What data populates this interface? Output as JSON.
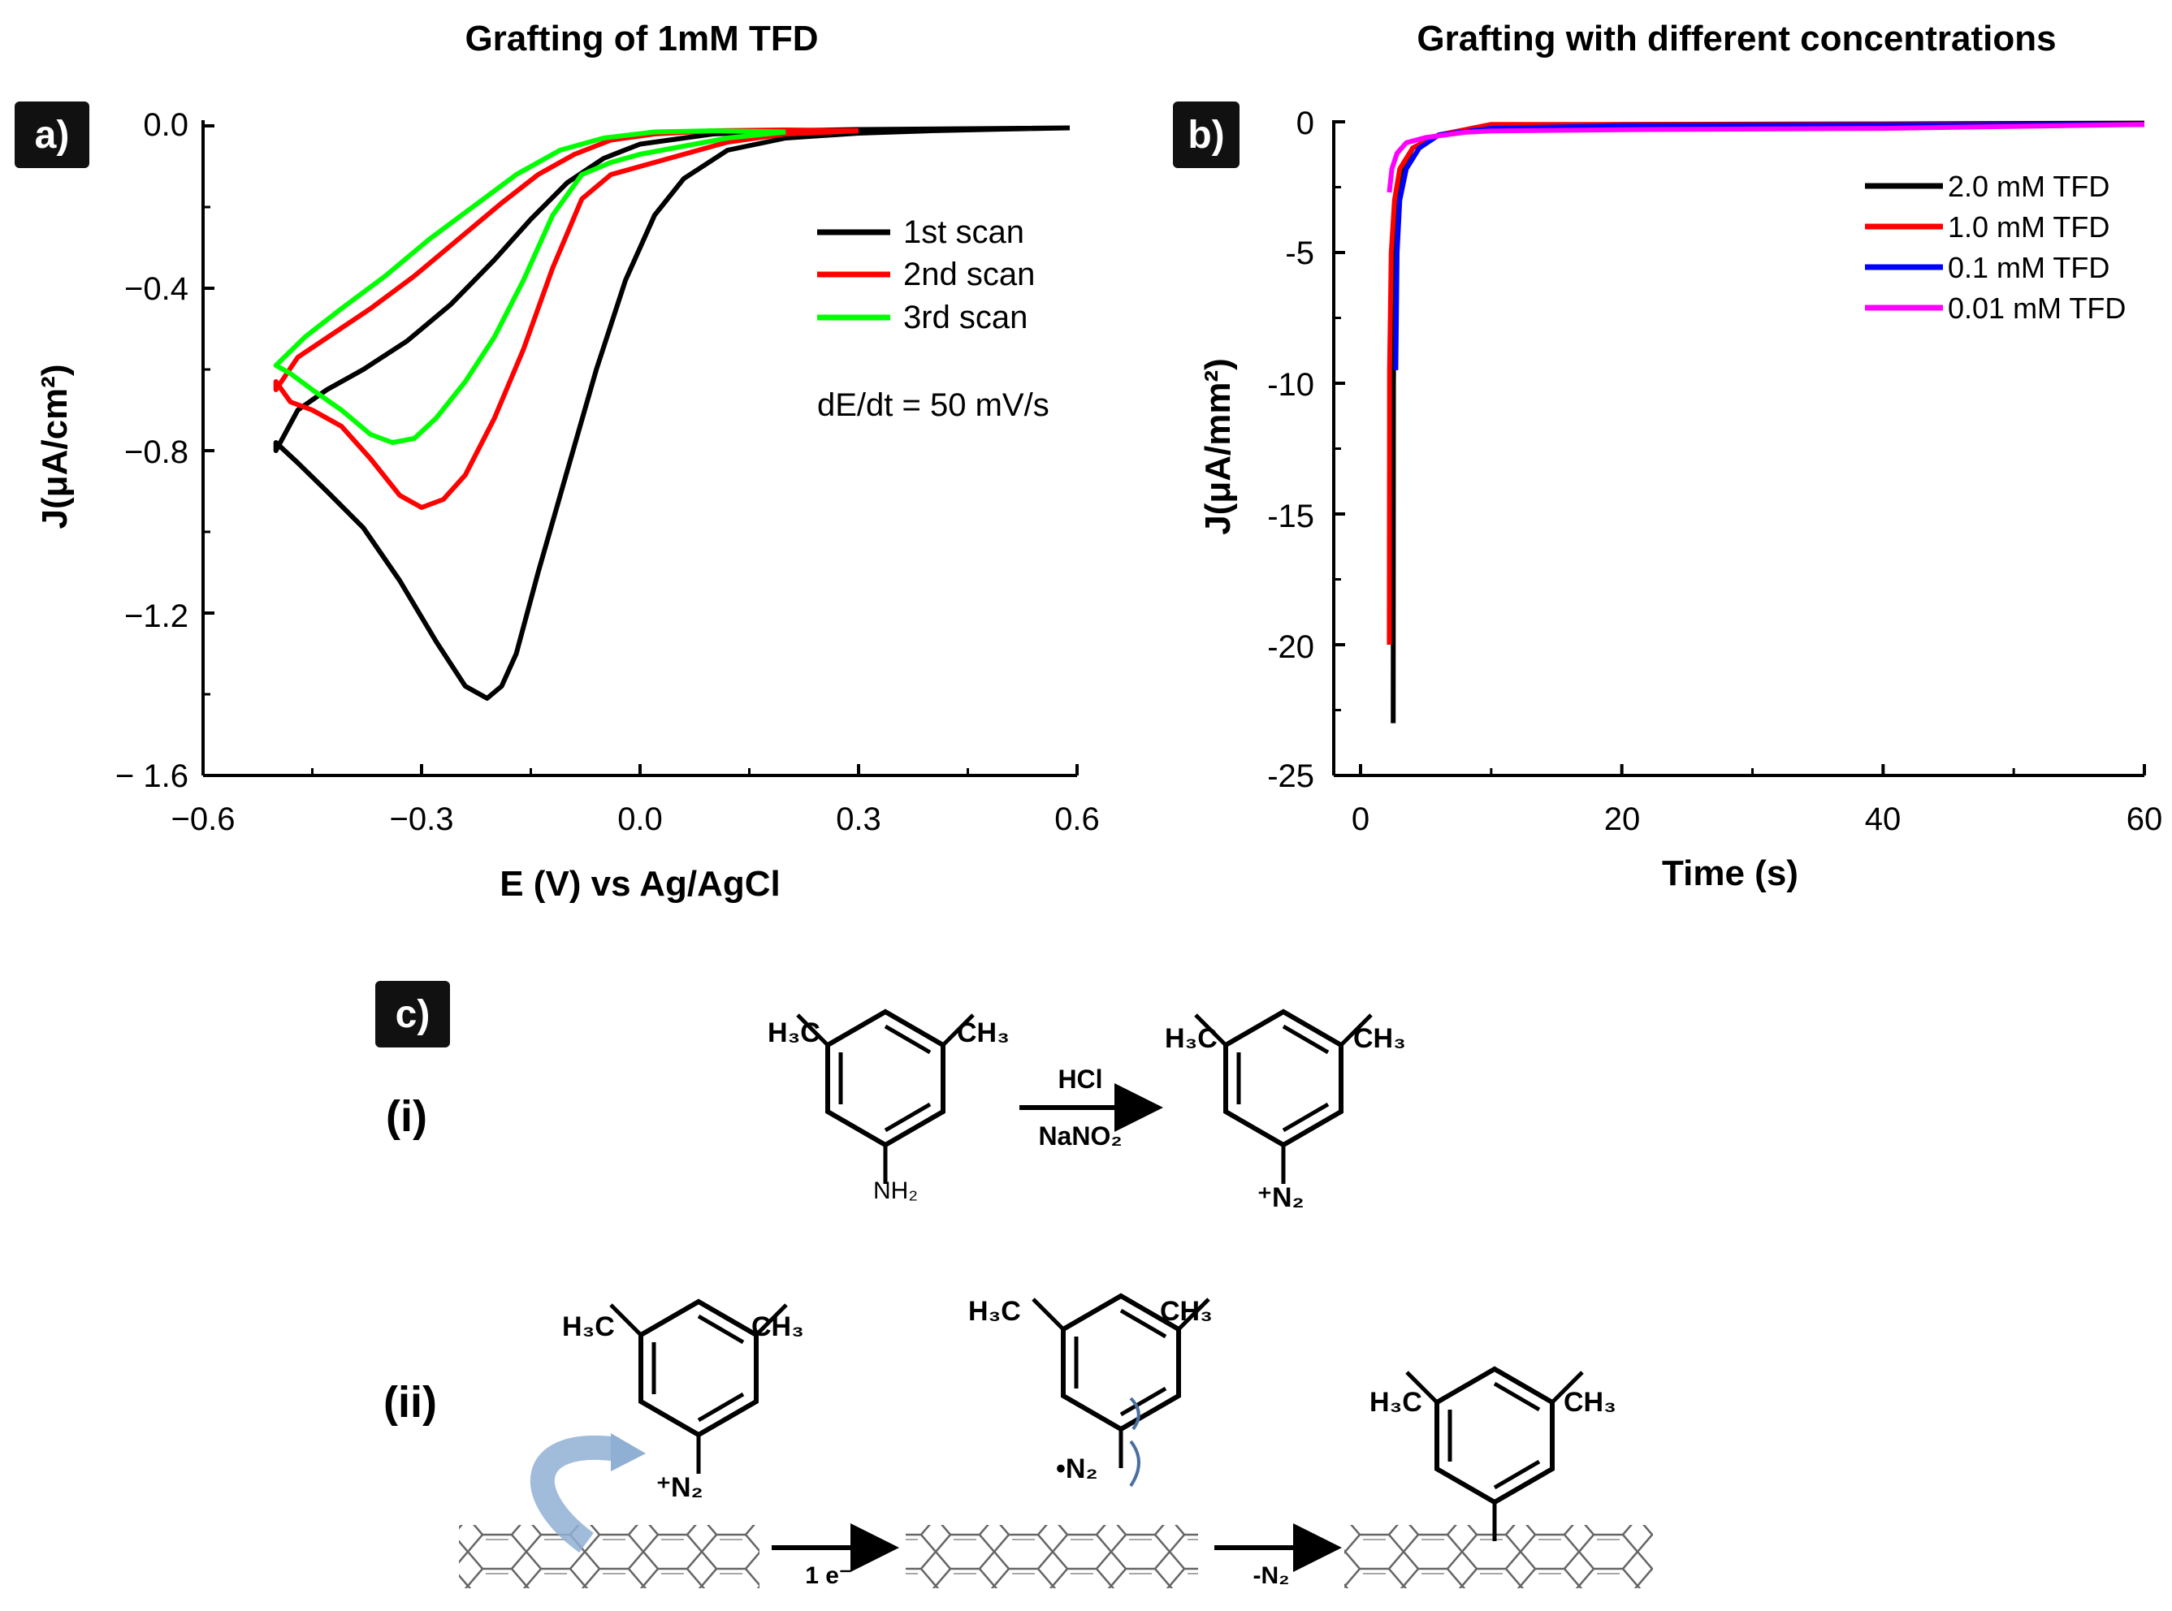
{
  "panel_a": {
    "badge": "a)",
    "title": "Grafting of 1mM TFD",
    "legend": [
      "1st scan",
      "2nd scan",
      "3rd scan"
    ],
    "annotation": "dE/dt = 50 mV/s",
    "xticks": [
      "−0.6",
      "−0.3",
      "0.0",
      "0.3",
      "0.6"
    ],
    "yticks": [
      "0.0",
      "−0.4",
      "−0.8",
      "−1.2",
      "− 1.6"
    ],
    "xlabel": "E (V) vs Ag/AgCl",
    "ylabel": "J(μA/cm²)"
  },
  "panel_b": {
    "badge": "b)",
    "title": "Grafting with different concentrations",
    "legend": [
      "2.0 mM TFD",
      "1.0 mM TFD",
      "0.1 mM TFD",
      "0.01 mM TFD"
    ],
    "xticks": [
      "0",
      "20",
      "40",
      "60"
    ],
    "yticks": [
      "0",
      "-5",
      "-10",
      "-15",
      "-20",
      "-25"
    ],
    "xlabel": "Time (s)",
    "ylabel": "J(μA/mm²)"
  },
  "panel_c": {
    "badge": "c)",
    "step_i": "(i)",
    "step_ii": "(ii)",
    "reagent_top": "HCl",
    "reagent_bottom": "NaNO₂",
    "h3c": "H₃C",
    "ch3": "CH₃",
    "nh2": "NH₂",
    "diazonium": "⁺N₂",
    "radical": "•N₂",
    "arrow_ii_1": "1 e⁻",
    "arrow_ii_2": "-N₂"
  },
  "chart_data": [
    {
      "type": "line",
      "title": "Grafting of 1mM TFD",
      "xlabel": "E (V) vs Ag/AgCl",
      "ylabel": "J(μA/cm²)",
      "xlim": [
        -0.6,
        0.6
      ],
      "ylim": [
        -1.6,
        0.0
      ],
      "legend_position": "top-right",
      "colors": [
        "#000000",
        "#ff0000",
        "#00ff00"
      ],
      "series": [
        {
          "name": "1st scan",
          "forward": [
            [
              0.59,
              -0.005
            ],
            [
              0.5,
              -0.008
            ],
            [
              0.4,
              -0.012
            ],
            [
              0.3,
              -0.018
            ],
            [
              0.2,
              -0.03
            ],
            [
              0.12,
              -0.06
            ],
            [
              0.06,
              -0.13
            ],
            [
              0.02,
              -0.22
            ],
            [
              -0.02,
              -0.38
            ],
            [
              -0.06,
              -0.6
            ],
            [
              -0.1,
              -0.85
            ],
            [
              -0.14,
              -1.1
            ],
            [
              -0.17,
              -1.3
            ],
            [
              -0.19,
              -1.38
            ],
            [
              -0.21,
              -1.41
            ],
            [
              -0.24,
              -1.38
            ],
            [
              -0.28,
              -1.27
            ],
            [
              -0.33,
              -1.12
            ],
            [
              -0.38,
              -0.99
            ],
            [
              -0.43,
              -0.9
            ],
            [
              -0.47,
              -0.83
            ],
            [
              -0.5,
              -0.78
            ]
          ],
          "reverse": [
            [
              -0.5,
              -0.8
            ],
            [
              -0.47,
              -0.7
            ],
            [
              -0.43,
              -0.65
            ],
            [
              -0.38,
              -0.6
            ],
            [
              -0.32,
              -0.53
            ],
            [
              -0.26,
              -0.44
            ],
            [
              -0.2,
              -0.33
            ],
            [
              -0.15,
              -0.23
            ],
            [
              -0.1,
              -0.14
            ],
            [
              -0.05,
              -0.08
            ],
            [
              0.0,
              -0.045
            ],
            [
              0.1,
              -0.02
            ],
            [
              0.2,
              -0.012
            ],
            [
              0.3,
              -0.009
            ],
            [
              0.45,
              -0.007
            ],
            [
              0.59,
              -0.005
            ]
          ]
        },
        {
          "name": "2nd scan",
          "forward": [
            [
              0.3,
              -0.012
            ],
            [
              0.2,
              -0.02
            ],
            [
              0.12,
              -0.04
            ],
            [
              0.06,
              -0.07
            ],
            [
              0.0,
              -0.1
            ],
            [
              -0.04,
              -0.12
            ],
            [
              -0.08,
              -0.18
            ],
            [
              -0.12,
              -0.35
            ],
            [
              -0.16,
              -0.55
            ],
            [
              -0.2,
              -0.72
            ],
            [
              -0.24,
              -0.86
            ],
            [
              -0.27,
              -0.92
            ],
            [
              -0.3,
              -0.94
            ],
            [
              -0.33,
              -0.91
            ],
            [
              -0.37,
              -0.82
            ],
            [
              -0.41,
              -0.74
            ],
            [
              -0.45,
              -0.7
            ],
            [
              -0.48,
              -0.68
            ],
            [
              -0.5,
              -0.63
            ]
          ],
          "reverse": [
            [
              -0.5,
              -0.65
            ],
            [
              -0.47,
              -0.57
            ],
            [
              -0.42,
              -0.51
            ],
            [
              -0.37,
              -0.45
            ],
            [
              -0.31,
              -0.37
            ],
            [
              -0.25,
              -0.28
            ],
            [
              -0.19,
              -0.19
            ],
            [
              -0.14,
              -0.12
            ],
            [
              -0.09,
              -0.07
            ],
            [
              -0.04,
              -0.035
            ],
            [
              0.02,
              -0.02
            ],
            [
              0.1,
              -0.012
            ],
            [
              0.2,
              -0.01
            ],
            [
              0.3,
              -0.012
            ]
          ]
        },
        {
          "name": "3rd scan",
          "forward": [
            [
              0.2,
              -0.015
            ],
            [
              0.12,
              -0.03
            ],
            [
              0.06,
              -0.05
            ],
            [
              0.0,
              -0.07
            ],
            [
              -0.04,
              -0.09
            ],
            [
              -0.08,
              -0.12
            ],
            [
              -0.12,
              -0.22
            ],
            [
              -0.16,
              -0.38
            ],
            [
              -0.2,
              -0.52
            ],
            [
              -0.24,
              -0.63
            ],
            [
              -0.28,
              -0.72
            ],
            [
              -0.31,
              -0.77
            ],
            [
              -0.34,
              -0.78
            ],
            [
              -0.37,
              -0.76
            ],
            [
              -0.41,
              -0.7
            ],
            [
              -0.45,
              -0.65
            ],
            [
              -0.48,
              -0.61
            ],
            [
              -0.5,
              -0.59
            ]
          ],
          "reverse": [
            [
              -0.5,
              -0.59
            ],
            [
              -0.46,
              -0.52
            ],
            [
              -0.41,
              -0.45
            ],
            [
              -0.35,
              -0.37
            ],
            [
              -0.29,
              -0.28
            ],
            [
              -0.23,
              -0.2
            ],
            [
              -0.17,
              -0.12
            ],
            [
              -0.11,
              -0.06
            ],
            [
              -0.05,
              -0.03
            ],
            [
              0.02,
              -0.015
            ],
            [
              0.1,
              -0.012
            ],
            [
              0.2,
              -0.015
            ]
          ]
        }
      ]
    },
    {
      "type": "line",
      "title": "Grafting with different concentrations",
      "xlabel": "Time (s)",
      "ylabel": "J(μA/mm²)",
      "xlim": [
        0,
        60
      ],
      "ylim": [
        -25,
        0
      ],
      "legend_position": "top-right",
      "colors": [
        "#000000",
        "#ff0000",
        "#0000ff",
        "#ff00ff"
      ],
      "series": [
        {
          "name": "2.0 mM TFD",
          "points": [
            [
              2.5,
              -23
            ],
            [
              2.52,
              -10
            ],
            [
              2.6,
              -5
            ],
            [
              2.8,
              -3
            ],
            [
              3.2,
              -1.8
            ],
            [
              4,
              -1
            ],
            [
              6,
              -0.5
            ],
            [
              10,
              -0.15
            ],
            [
              20,
              -0.1
            ],
            [
              40,
              -0.08
            ],
            [
              60,
              -0.05
            ]
          ]
        },
        {
          "name": "1.0 mM TFD",
          "points": [
            [
              2.2,
              -20
            ],
            [
              2.22,
              -9.5
            ],
            [
              2.35,
              -5
            ],
            [
              2.6,
              -3
            ],
            [
              3,
              -1.8
            ],
            [
              4,
              -1
            ],
            [
              6,
              -0.5
            ],
            [
              10,
              -0.1
            ],
            [
              20,
              -0.1
            ],
            [
              40,
              -0.1
            ],
            [
              60,
              -0.1
            ]
          ]
        },
        {
          "name": "0.1 mM TFD",
          "points": [
            [
              2.7,
              -9.5
            ],
            [
              2.8,
              -5
            ],
            [
              3,
              -3
            ],
            [
              3.5,
              -1.8
            ],
            [
              4.5,
              -1
            ],
            [
              6,
              -0.5
            ],
            [
              10,
              -0.25
            ],
            [
              20,
              -0.15
            ],
            [
              40,
              -0.12
            ],
            [
              60,
              -0.1
            ]
          ]
        },
        {
          "name": "0.01 mM TFD",
          "points": [
            [
              2.2,
              -2.7
            ],
            [
              2.4,
              -1.8
            ],
            [
              2.8,
              -1.2
            ],
            [
              3.5,
              -0.8
            ],
            [
              5,
              -0.6
            ],
            [
              8,
              -0.4
            ],
            [
              10,
              -0.35
            ],
            [
              20,
              -0.3
            ],
            [
              40,
              -0.25
            ],
            [
              60,
              -0.1
            ]
          ]
        }
      ]
    }
  ]
}
